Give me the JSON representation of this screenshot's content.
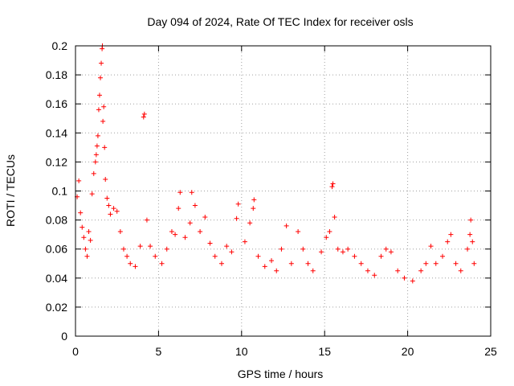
{
  "chart_data": {
    "type": "scatter",
    "title": "Day 094 of 2024, Rate Of TEC Index for receiver osls",
    "xlabel": "GPS time / hours",
    "ylabel": "ROTI / TECUs",
    "xlim": [
      0,
      25
    ],
    "ylim": [
      0,
      0.2
    ],
    "x_ticks": [
      0,
      5,
      10,
      15,
      20,
      25
    ],
    "y_ticks": [
      0,
      0.02,
      0.04,
      0.06,
      0.08,
      0.1,
      0.12,
      0.14,
      0.16,
      0.18,
      0.2
    ],
    "x_tick_labels": [
      "0",
      "5",
      "10",
      "15",
      "20",
      "25"
    ],
    "y_tick_labels": [
      "0",
      "0.02",
      "0.04",
      "0.06",
      "0.08",
      "0.1",
      "0.12",
      "0.14",
      "0.16",
      "0.18",
      "0.2"
    ],
    "grid": true,
    "marker": "+",
    "color": "#ff0000",
    "series": [
      {
        "name": "ROTI",
        "points": [
          [
            0.1,
            0.096
          ],
          [
            0.2,
            0.107
          ],
          [
            0.3,
            0.085
          ],
          [
            0.4,
            0.075
          ],
          [
            0.5,
            0.068
          ],
          [
            0.6,
            0.06
          ],
          [
            0.7,
            0.055
          ],
          [
            0.8,
            0.072
          ],
          [
            0.9,
            0.066
          ],
          [
            1.0,
            0.098
          ],
          [
            1.1,
            0.112
          ],
          [
            1.2,
            0.12
          ],
          [
            1.25,
            0.125
          ],
          [
            1.3,
            0.131
          ],
          [
            1.35,
            0.138
          ],
          [
            1.4,
            0.156
          ],
          [
            1.45,
            0.166
          ],
          [
            1.5,
            0.178
          ],
          [
            1.55,
            0.188
          ],
          [
            1.6,
            0.198
          ],
          [
            1.62,
            0.2
          ],
          [
            1.65,
            0.148
          ],
          [
            1.7,
            0.158
          ],
          [
            1.75,
            0.13
          ],
          [
            1.8,
            0.108
          ],
          [
            1.9,
            0.095
          ],
          [
            2.0,
            0.09
          ],
          [
            2.1,
            0.084
          ],
          [
            2.3,
            0.088
          ],
          [
            2.5,
            0.086
          ],
          [
            2.7,
            0.072
          ],
          [
            2.9,
            0.06
          ],
          [
            3.1,
            0.055
          ],
          [
            3.3,
            0.05
          ],
          [
            3.6,
            0.048
          ],
          [
            3.9,
            0.062
          ],
          [
            4.1,
            0.151
          ],
          [
            4.15,
            0.153
          ],
          [
            4.3,
            0.08
          ],
          [
            4.5,
            0.062
          ],
          [
            4.8,
            0.055
          ],
          [
            5.2,
            0.05
          ],
          [
            5.5,
            0.06
          ],
          [
            5.8,
            0.072
          ],
          [
            6.0,
            0.07
          ],
          [
            6.2,
            0.088
          ],
          [
            6.3,
            0.099
          ],
          [
            6.6,
            0.068
          ],
          [
            6.9,
            0.078
          ],
          [
            7.0,
            0.099
          ],
          [
            7.2,
            0.09
          ],
          [
            7.5,
            0.072
          ],
          [
            7.8,
            0.082
          ],
          [
            8.1,
            0.064
          ],
          [
            8.4,
            0.055
          ],
          [
            8.8,
            0.05
          ],
          [
            9.1,
            0.062
          ],
          [
            9.4,
            0.058
          ],
          [
            9.7,
            0.081
          ],
          [
            9.8,
            0.091
          ],
          [
            10.2,
            0.065
          ],
          [
            10.5,
            0.078
          ],
          [
            10.7,
            0.088
          ],
          [
            10.75,
            0.094
          ],
          [
            11.0,
            0.055
          ],
          [
            11.4,
            0.048
          ],
          [
            11.8,
            0.052
          ],
          [
            12.1,
            0.045
          ],
          [
            12.4,
            0.06
          ],
          [
            12.7,
            0.076
          ],
          [
            13.0,
            0.05
          ],
          [
            13.4,
            0.072
          ],
          [
            13.7,
            0.06
          ],
          [
            14.0,
            0.05
          ],
          [
            14.3,
            0.045
          ],
          [
            14.8,
            0.058
          ],
          [
            15.1,
            0.068
          ],
          [
            15.3,
            0.072
          ],
          [
            15.45,
            0.103
          ],
          [
            15.5,
            0.105
          ],
          [
            15.6,
            0.082
          ],
          [
            15.8,
            0.06
          ],
          [
            16.1,
            0.058
          ],
          [
            16.4,
            0.06
          ],
          [
            16.8,
            0.055
          ],
          [
            17.2,
            0.05
          ],
          [
            17.6,
            0.045
          ],
          [
            18.0,
            0.042
          ],
          [
            18.4,
            0.055
          ],
          [
            18.7,
            0.06
          ],
          [
            19.0,
            0.058
          ],
          [
            19.4,
            0.045
          ],
          [
            19.8,
            0.04
          ],
          [
            20.3,
            0.038
          ],
          [
            20.8,
            0.045
          ],
          [
            21.1,
            0.05
          ],
          [
            21.4,
            0.062
          ],
          [
            21.7,
            0.05
          ],
          [
            22.1,
            0.055
          ],
          [
            22.4,
            0.065
          ],
          [
            22.6,
            0.07
          ],
          [
            22.9,
            0.05
          ],
          [
            23.2,
            0.045
          ],
          [
            23.6,
            0.06
          ],
          [
            23.75,
            0.07
          ],
          [
            23.8,
            0.08
          ],
          [
            23.9,
            0.065
          ],
          [
            24.0,
            0.05
          ]
        ]
      }
    ]
  }
}
